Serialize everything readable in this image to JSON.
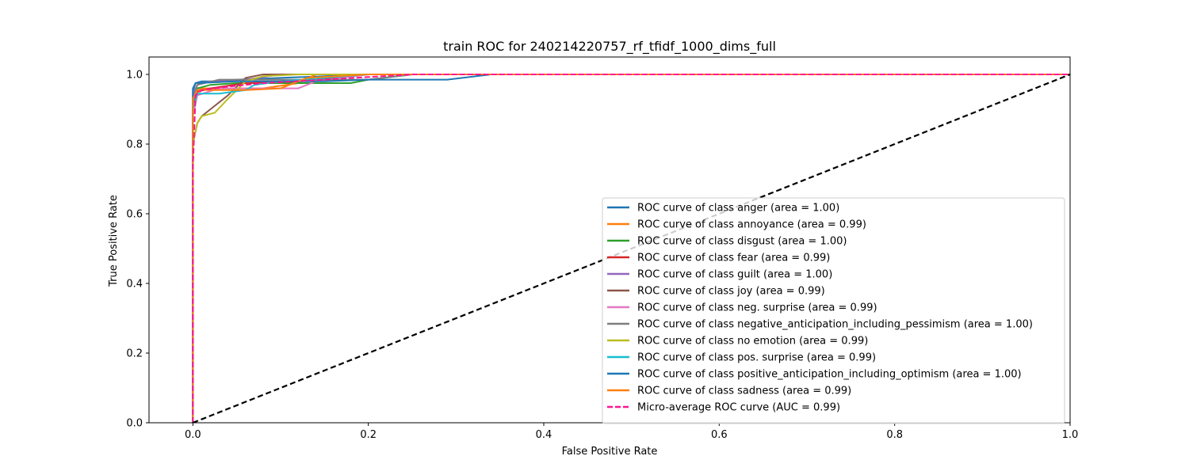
{
  "chart_data": {
    "type": "line",
    "title": "train ROC for 240214220757_rf_tfidf_1000_dims_full",
    "xlabel": "False Positive Rate",
    "ylabel": "True Positive Rate",
    "xlim": [
      -0.05,
      1.0
    ],
    "ylim": [
      0.0,
      1.05
    ],
    "xticks": [
      0.0,
      0.2,
      0.4,
      0.6,
      0.8,
      1.0
    ],
    "xtick_labels": [
      "0.0",
      "0.2",
      "0.4",
      "0.6",
      "0.8",
      "1.0"
    ],
    "yticks": [
      0.0,
      0.2,
      0.4,
      0.6,
      0.8,
      1.0
    ],
    "ytick_labels": [
      "0.0",
      "0.2",
      "0.4",
      "0.6",
      "0.8",
      "1.0"
    ],
    "grid": false,
    "legend_position": "lower-right",
    "series": [
      {
        "name": "ROC curve of class anger (area = 1.00)",
        "color": "#1f77b4",
        "dash": "solid",
        "x": [
          0,
          0,
          0.003,
          0.01,
          0.03,
          0.05,
          0.1,
          0.2,
          1.0
        ],
        "y": [
          0,
          0.95,
          0.975,
          0.98,
          0.98,
          0.985,
          0.99,
          1.0,
          1.0
        ]
      },
      {
        "name": "ROC curve of class annoyance (area = 0.99)",
        "color": "#ff7f0e",
        "dash": "solid",
        "x": [
          0,
          0,
          0.003,
          0.01,
          0.03,
          0.08,
          0.12,
          0.14,
          0.2,
          1.0
        ],
        "y": [
          0,
          0.9,
          0.95,
          0.96,
          0.96,
          0.96,
          0.975,
          1.0,
          1.0,
          1.0
        ]
      },
      {
        "name": "ROC curve of class disgust (area = 1.00)",
        "color": "#2ca02c",
        "dash": "solid",
        "x": [
          0,
          0,
          0.005,
          0.02,
          0.05,
          0.1,
          0.18,
          0.2,
          0.25,
          1.0
        ],
        "y": [
          0,
          0.93,
          0.96,
          0.97,
          0.975,
          0.975,
          0.975,
          0.985,
          1.0,
          1.0
        ]
      },
      {
        "name": "ROC curve of class fear (area = 0.99)",
        "color": "#d62728",
        "dash": "solid",
        "x": [
          0,
          0,
          0.005,
          0.02,
          0.06,
          0.12,
          0.2,
          1.0
        ],
        "y": [
          0,
          0.9,
          0.95,
          0.96,
          0.975,
          0.98,
          1.0,
          1.0
        ]
      },
      {
        "name": "ROC curve of class guilt (area = 1.00)",
        "color": "#9467bd",
        "dash": "solid",
        "x": [
          0,
          0,
          0.005,
          0.02,
          0.06,
          0.1,
          1.0
        ],
        "y": [
          0,
          0.94,
          0.97,
          0.98,
          0.985,
          1.0,
          1.0
        ]
      },
      {
        "name": "ROC curve of class joy (area = 0.99)",
        "color": "#8c564b",
        "dash": "solid",
        "x": [
          0,
          0,
          0.005,
          0.01,
          0.02,
          0.04,
          0.06,
          0.08,
          0.1,
          1.0
        ],
        "y": [
          0,
          0.8,
          0.86,
          0.88,
          0.9,
          0.94,
          0.99,
          1.0,
          1.0,
          1.0
        ]
      },
      {
        "name": "ROC curve of class neg. surprise (area = 0.99)",
        "color": "#e377c2",
        "dash": "solid",
        "x": [
          0,
          0,
          0.005,
          0.03,
          0.08,
          0.12,
          0.14,
          0.2,
          1.0
        ],
        "y": [
          0,
          0.88,
          0.94,
          0.96,
          0.96,
          0.96,
          0.98,
          1.0,
          1.0
        ]
      },
      {
        "name": "ROC curve of class negative_anticipation_including_pessimism (area = 1.00)",
        "color": "#7f7f7f",
        "dash": "solid",
        "x": [
          0,
          0,
          0.005,
          0.03,
          0.1,
          0.2,
          0.25,
          1.0
        ],
        "y": [
          0,
          0.92,
          0.97,
          0.985,
          0.985,
          0.985,
          1.0,
          1.0
        ]
      },
      {
        "name": "ROC curve of class no emotion (area = 0.99)",
        "color": "#bcbd22",
        "dash": "solid",
        "x": [
          0,
          0,
          0.005,
          0.01,
          0.025,
          0.04,
          0.06,
          0.08,
          0.12,
          1.0
        ],
        "y": [
          0,
          0.8,
          0.86,
          0.88,
          0.89,
          0.93,
          0.98,
          0.995,
          1.0,
          1.0
        ]
      },
      {
        "name": "ROC curve of class pos. surprise (area = 0.99)",
        "color": "#17becf",
        "dash": "solid",
        "x": [
          0,
          0,
          0.005,
          0.03,
          0.06,
          0.07,
          0.1,
          0.2,
          1.0
        ],
        "y": [
          0,
          0.9,
          0.945,
          0.945,
          0.955,
          0.97,
          0.98,
          1.0,
          1.0
        ]
      },
      {
        "name": "ROC curve of class positive_anticipation_including_optimism (area = 1.00)",
        "color": "#1f77b4",
        "dash": "solid",
        "x": [
          0,
          0,
          0.003,
          0.05,
          0.15,
          0.2,
          0.29,
          0.34,
          1.0
        ],
        "y": [
          0,
          0.96,
          0.975,
          0.98,
          0.98,
          0.985,
          0.985,
          1.0,
          1.0
        ]
      },
      {
        "name": "ROC curve of class sadness (area = 0.99)",
        "color": "#ff7f0e",
        "dash": "solid",
        "x": [
          0,
          0,
          0.005,
          0.02,
          0.06,
          0.1,
          0.13,
          0.2,
          1.0
        ],
        "y": [
          0,
          0.93,
          0.955,
          0.955,
          0.955,
          0.96,
          0.99,
          1.0,
          1.0
        ]
      },
      {
        "name": "Micro-average ROC curve (AUC = 0.99)",
        "color": "#ff1493",
        "dash": "dashed",
        "x": [
          0,
          0,
          0.003,
          0.01,
          0.04,
          0.08,
          0.15,
          0.25,
          1.0
        ],
        "y": [
          0,
          0.73,
          0.94,
          0.955,
          0.965,
          0.975,
          0.985,
          1.0,
          1.0
        ]
      }
    ],
    "reference_line": {
      "x": [
        0,
        1
      ],
      "y": [
        0,
        1
      ],
      "color": "#000000",
      "dash": "dashed"
    }
  }
}
